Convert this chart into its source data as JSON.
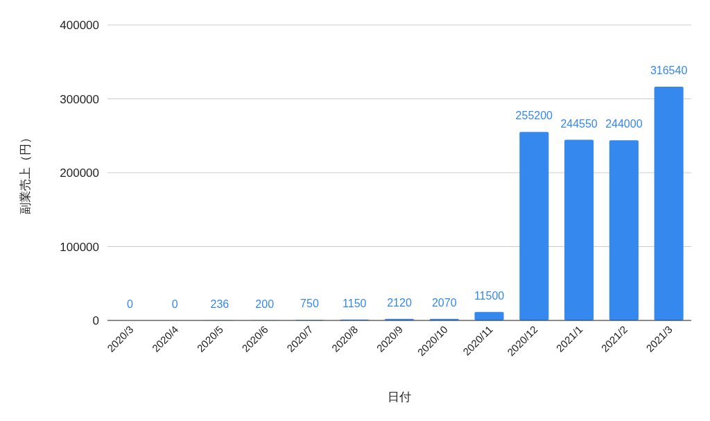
{
  "chart_data": {
    "type": "bar",
    "xlabel": "日付",
    "ylabel": "副業売上（円）",
    "categories": [
      "2020/3",
      "2020/4",
      "2020/5",
      "2020/6",
      "2020/7",
      "2020/8",
      "2020/9",
      "2020/10",
      "2020/11",
      "2020/12",
      "2021/1",
      "2021/2",
      "2021/3"
    ],
    "values": [
      0,
      0,
      236,
      200,
      750,
      1150,
      2120,
      2070,
      11500,
      255200,
      244550,
      244000,
      316540
    ],
    "color": "#3589ee",
    "ylim": [
      0,
      400000
    ],
    "yticks": [
      0,
      100000,
      200000,
      300000,
      400000
    ],
    "grid": "y",
    "data_labels": true
  }
}
